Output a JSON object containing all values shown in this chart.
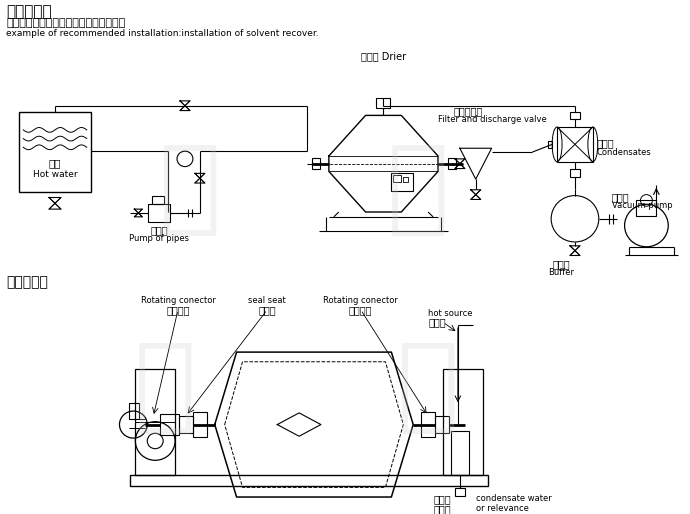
{
  "title1": "安装示意图",
  "subtitle1_cn": "推荐的工艺安置示范：溶剂回收工艺安置",
  "subtitle1_en": "example of recommended installation:installation of solvent recover.",
  "title2": "简易结构图",
  "dryer_label": "干燥机 Drier",
  "filter_cn": "过滤放空阀",
  "filter_en": "Filter and discharge valve",
  "condenser_cn": "冷凝器",
  "condenser_en": "Condensates",
  "vacuum_cn": "真空泵",
  "vacuum_en": "Vacuum pump",
  "buffer_cn": "缓冲罐",
  "buffer_en": "Buffer",
  "hotwater_cn": "热水",
  "hotwater_en": "Hot water",
  "pump_cn": "管道泵",
  "pump_en": "Pump of pipes",
  "rot1_en": "Rotating conector",
  "rot1_cn": "旋转接头",
  "seal_en": "seal seat",
  "seal_cn": "密封座",
  "rot2_en": "Rotating conector",
  "rot2_cn": "旋转接头",
  "hotsrc_en": "hot source",
  "hotsrc_cn": "进热源",
  "cond2_cn": "冷凝器",
  "cond2_cn2": "或回流",
  "cond2_en": "condensate water",
  "cond2_en2": "or relevance",
  "bg_color": "#ffffff",
  "line_color": "#000000"
}
